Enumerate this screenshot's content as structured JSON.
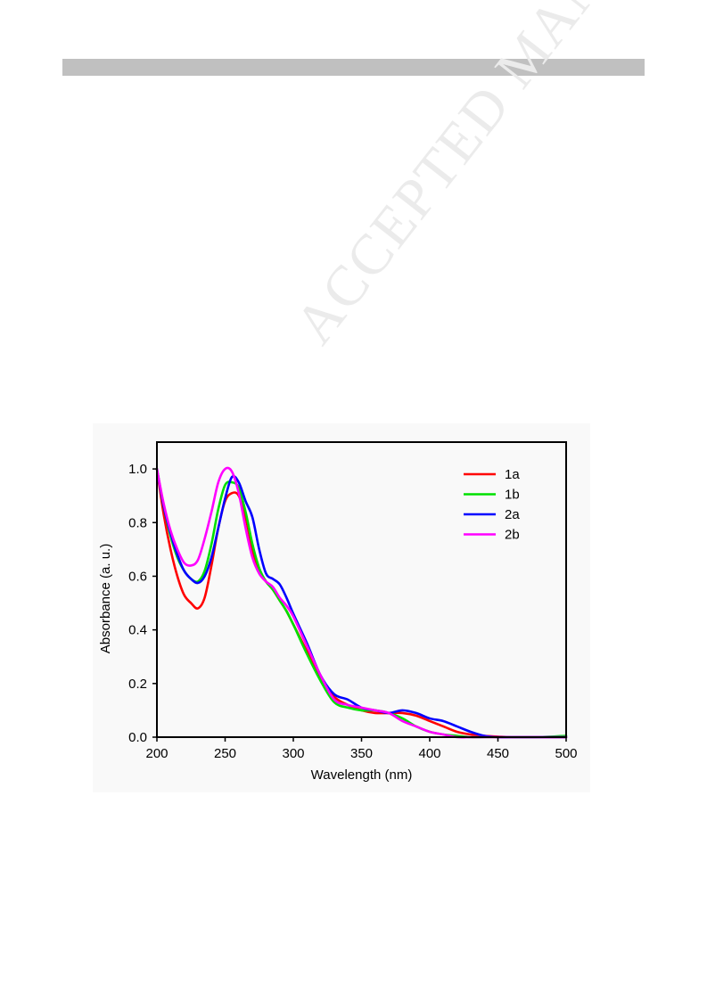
{
  "watermark": "ACCEPTED MANUSCRIPT",
  "colors": {
    "header_bar": "#c0c0c0",
    "watermark": "#ebebeb",
    "panel_background": "#f9f9f9"
  },
  "chart_data": {
    "type": "line",
    "title": "",
    "xlabel": "Wavelength (nm)",
    "ylabel": "Absorbance (a. u.)",
    "xlim": [
      200,
      500
    ],
    "ylim": [
      0,
      1.1
    ],
    "xticks": [
      200,
      250,
      300,
      350,
      400,
      450,
      500
    ],
    "yticks": [
      0.0,
      0.2,
      0.4,
      0.6,
      0.8,
      1.0
    ],
    "xtick_labels": [
      "200",
      "250",
      "300",
      "350",
      "400",
      "450",
      "500"
    ],
    "ytick_labels": [
      "0.0",
      "0.2",
      "0.4",
      "0.6",
      "0.8",
      "1.0"
    ],
    "grid": false,
    "legend_position": "top-right",
    "series": [
      {
        "name": "1a",
        "color": "#ff0000",
        "x": [
          200,
          205,
          210,
          215,
          220,
          225,
          230,
          235,
          240,
          245,
          250,
          255,
          260,
          265,
          270,
          275,
          280,
          285,
          290,
          295,
          300,
          310,
          320,
          330,
          340,
          350,
          360,
          370,
          380,
          390,
          400,
          410,
          420,
          430,
          440,
          450,
          460,
          480,
          500
        ],
        "y": [
          1.0,
          0.83,
          0.7,
          0.6,
          0.53,
          0.5,
          0.48,
          0.52,
          0.64,
          0.78,
          0.88,
          0.91,
          0.9,
          0.82,
          0.7,
          0.62,
          0.58,
          0.55,
          0.51,
          0.47,
          0.42,
          0.32,
          0.22,
          0.15,
          0.12,
          0.1,
          0.09,
          0.09,
          0.09,
          0.08,
          0.06,
          0.04,
          0.02,
          0.01,
          0.005,
          0.002,
          0.0,
          0.0,
          0.0
        ]
      },
      {
        "name": "1b",
        "color": "#00e000",
        "x": [
          200,
          205,
          210,
          215,
          220,
          225,
          230,
          235,
          240,
          245,
          250,
          255,
          260,
          265,
          270,
          275,
          280,
          285,
          290,
          295,
          300,
          310,
          320,
          330,
          340,
          350,
          360,
          370,
          380,
          390,
          400,
          410,
          420,
          430,
          440,
          450,
          460,
          480,
          500
        ],
        "y": [
          1.0,
          0.86,
          0.75,
          0.67,
          0.62,
          0.59,
          0.58,
          0.62,
          0.72,
          0.85,
          0.94,
          0.95,
          0.93,
          0.84,
          0.72,
          0.63,
          0.58,
          0.55,
          0.51,
          0.47,
          0.42,
          0.31,
          0.21,
          0.13,
          0.11,
          0.1,
          0.1,
          0.09,
          0.07,
          0.04,
          0.02,
          0.01,
          0.005,
          0.0,
          0.0,
          0.0,
          0.0,
          0.0,
          0.005
        ]
      },
      {
        "name": "2a",
        "color": "#0000ff",
        "x": [
          200,
          205,
          210,
          215,
          220,
          225,
          230,
          235,
          240,
          245,
          250,
          255,
          260,
          265,
          270,
          275,
          280,
          285,
          290,
          295,
          300,
          310,
          320,
          330,
          340,
          350,
          360,
          370,
          380,
          390,
          400,
          410,
          420,
          430,
          440,
          450,
          460,
          480,
          500
        ],
        "y": [
          1.0,
          0.86,
          0.76,
          0.68,
          0.62,
          0.59,
          0.575,
          0.6,
          0.67,
          0.78,
          0.89,
          0.97,
          0.95,
          0.88,
          0.82,
          0.7,
          0.61,
          0.59,
          0.57,
          0.52,
          0.46,
          0.35,
          0.23,
          0.16,
          0.14,
          0.11,
          0.1,
          0.09,
          0.1,
          0.09,
          0.07,
          0.06,
          0.04,
          0.02,
          0.005,
          0.0,
          0.0,
          0.0,
          0.0
        ]
      },
      {
        "name": "2b",
        "color": "#ff00ff",
        "x": [
          200,
          205,
          210,
          215,
          220,
          225,
          230,
          235,
          240,
          245,
          250,
          255,
          260,
          265,
          270,
          275,
          280,
          285,
          290,
          295,
          300,
          310,
          320,
          330,
          340,
          350,
          360,
          370,
          380,
          390,
          400,
          410,
          420,
          430,
          440,
          450,
          460,
          480,
          500
        ],
        "y": [
          1.0,
          0.87,
          0.77,
          0.7,
          0.65,
          0.64,
          0.66,
          0.74,
          0.84,
          0.95,
          1.0,
          0.99,
          0.91,
          0.78,
          0.67,
          0.61,
          0.58,
          0.56,
          0.52,
          0.49,
          0.45,
          0.34,
          0.23,
          0.14,
          0.12,
          0.11,
          0.1,
          0.09,
          0.06,
          0.04,
          0.02,
          0.01,
          0.0,
          0.0,
          0.0,
          0.0,
          0.0,
          0.0,
          0.0
        ]
      }
    ]
  }
}
